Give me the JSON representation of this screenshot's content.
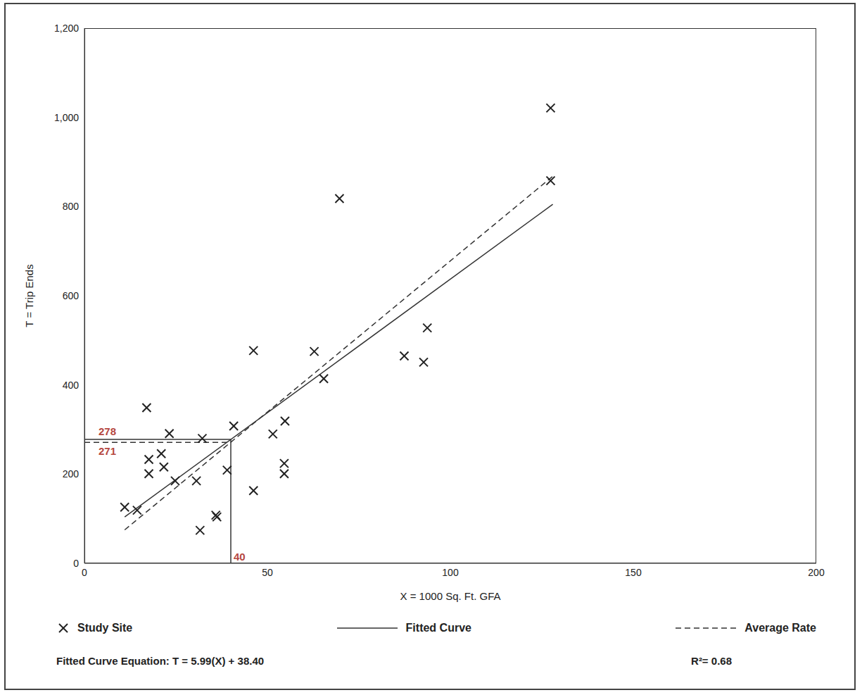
{
  "chart_data": {
    "type": "scatter",
    "x_label": "X = 1000 Sq. Ft. GFA",
    "y_label": "T = Trip Ends",
    "xlim": [
      0,
      200
    ],
    "xticks": [
      0,
      50,
      100,
      150,
      200
    ],
    "ylim": [
      0,
      1200
    ],
    "yticks": [
      0,
      200,
      400,
      600,
      800,
      {
        "value": 1000,
        "label": "1,000"
      },
      {
        "value": 1200,
        "label": "1,200"
      }
    ],
    "grid": false,
    "legend": "bottom",
    "series": [
      {
        "name": "Study Site",
        "type": "scatter",
        "marker": "x",
        "color": "#222222",
        "x": [
          11,
          14.4,
          17,
          17.6,
          17.6,
          21,
          21.7,
          23.2,
          24.8,
          30.6,
          31.6,
          32.2,
          35.9,
          36.2,
          39,
          40.8,
          46.2,
          46.2,
          51.5,
          54.8,
          54.6,
          54.6,
          62.8,
          65.4,
          69.7,
          87.4,
          92.7,
          93.7,
          127.4,
          127.4
        ],
        "values": [
          126,
          119,
          349,
          233,
          201,
          246,
          216,
          291,
          185,
          185,
          74,
          280,
          108,
          104,
          209,
          308,
          477,
          163,
          290,
          319,
          224,
          201,
          475,
          414,
          818,
          465,
          451,
          528,
          1021,
          858
        ]
      },
      {
        "name": "Fitted Curve",
        "type": "line",
        "line_style": "solid",
        "color": "#333333",
        "x": [
          11,
          128
        ],
        "values": [
          104,
          805
        ]
      },
      {
        "name": "Average Rate",
        "type": "line",
        "line_style": "dashed",
        "color": "#333333",
        "x": [
          11,
          128
        ],
        "values": [
          75,
          868
        ]
      }
    ],
    "reference": {
      "x": 40,
      "fitted_y": 278,
      "average_y": 271,
      "color": "#b5473f"
    },
    "equation": "Fitted Curve Equation: T = 5.99(X) + 38.40",
    "r_squared": "R²= 0.68"
  }
}
